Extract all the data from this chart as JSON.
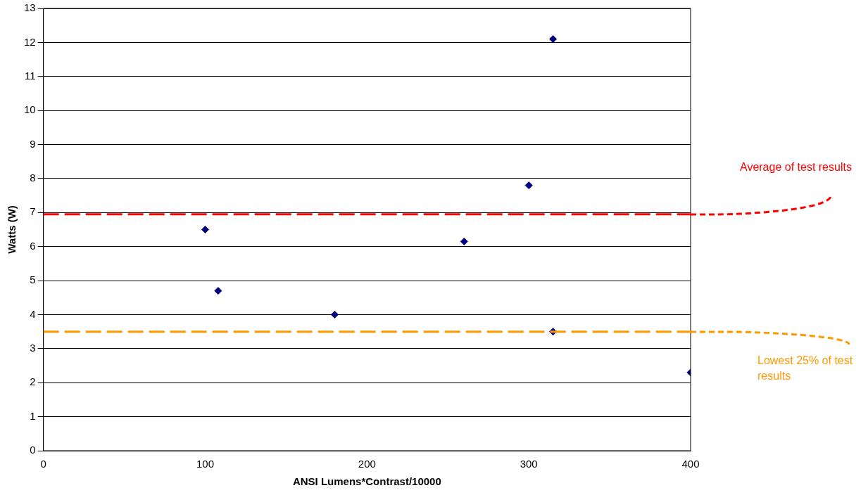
{
  "chart_data": {
    "type": "scatter",
    "xlabel": "ANSI Lumens*Contrast/10000",
    "ylabel": "Watts (W)",
    "x": [
      100,
      108,
      180,
      260,
      300,
      315,
      315,
      400
    ],
    "series": [
      {
        "color": "#000080",
        "values": [
          6.5,
          4.7,
          4.0,
          6.15,
          7.8,
          12.1,
          3.5,
          2.3
        ]
      }
    ],
    "xlim": [
      0,
      400
    ],
    "xticks": [
      0,
      100,
      200,
      300,
      400
    ],
    "ylim": [
      0,
      13
    ],
    "yticks": [
      0,
      1,
      2,
      3,
      4,
      5,
      6,
      7,
      8,
      9,
      10,
      11,
      12,
      13
    ],
    "grid": "y",
    "legend": false,
    "marker": "diamond",
    "ref_lines": [
      {
        "axis": "y",
        "value": 6.95,
        "label": "Average of test results",
        "color": "#ff0000",
        "line_style": "dashed"
      },
      {
        "axis": "y",
        "value": 3.5,
        "label": "Lowest 25% of test results",
        "color": "#ff9900",
        "line_style": "dashed"
      }
    ]
  }
}
